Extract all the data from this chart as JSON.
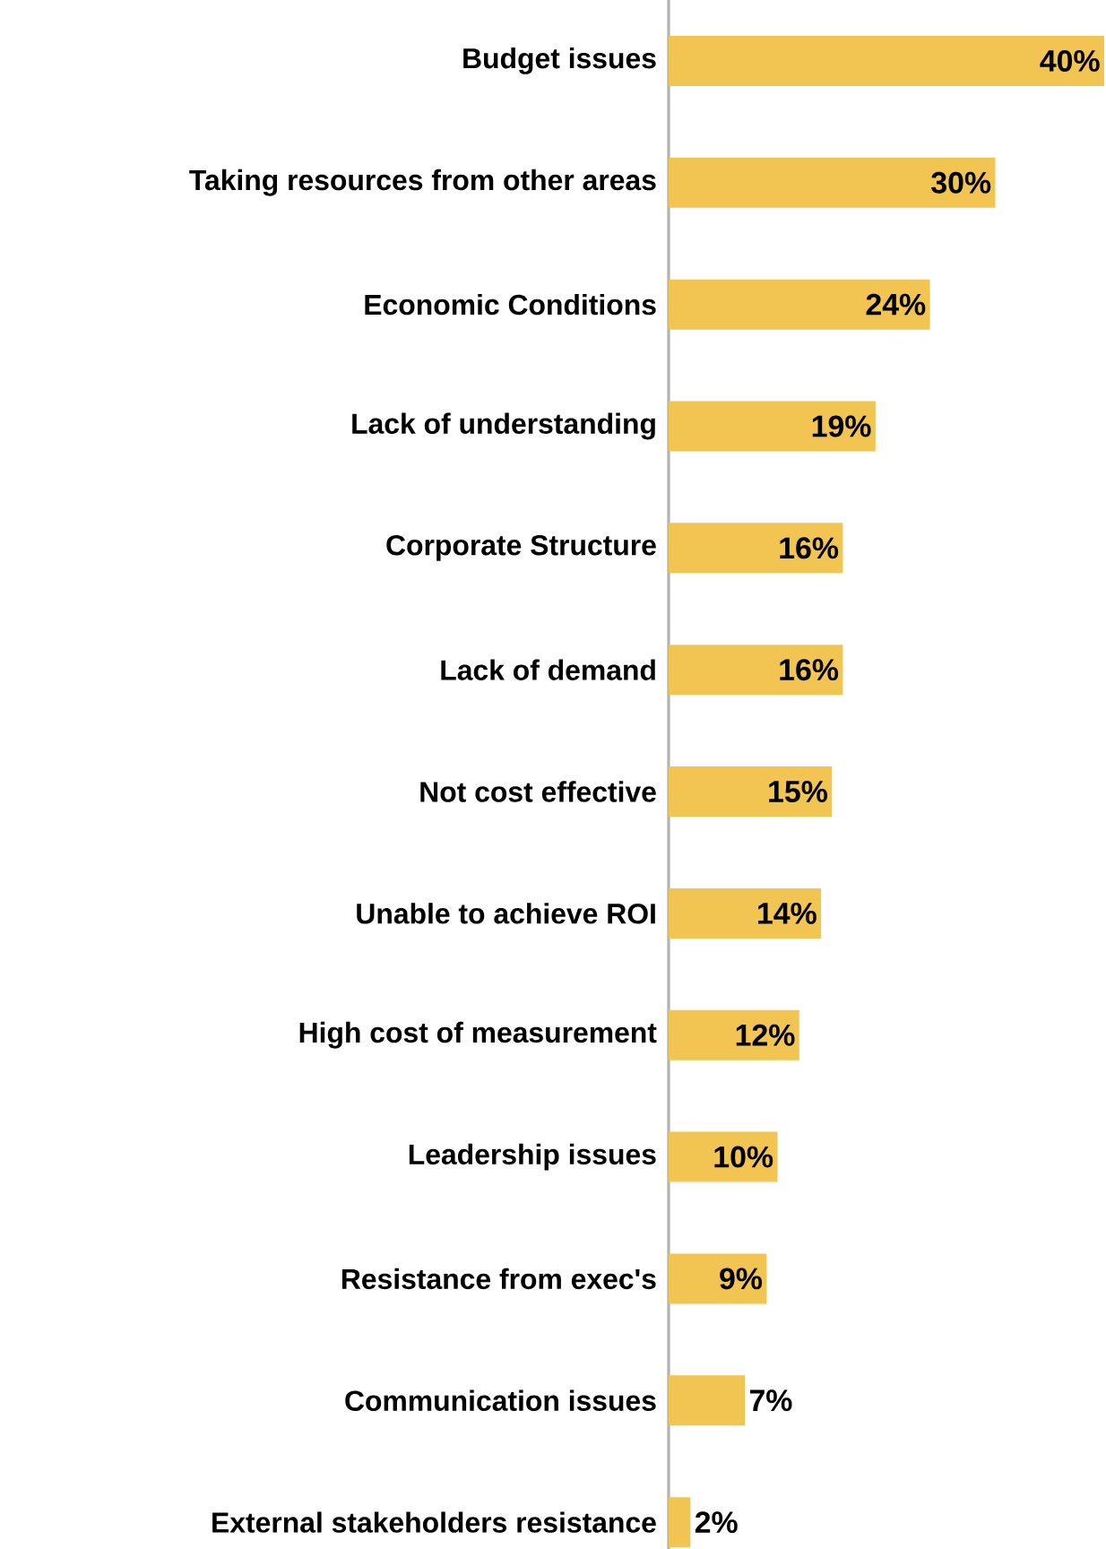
{
  "chart_data": {
    "type": "bar",
    "orientation": "horizontal",
    "categories": [
      "Budget issues",
      "Taking resources from other areas",
      "Economic Conditions",
      "Lack of understanding",
      "Corporate Structure",
      "Lack of demand",
      "Not cost effective",
      "Unable to achieve ROI",
      "High cost of measurement",
      "Leadership issues",
      "Resistance from exec's",
      "Communication issues",
      "External stakeholders resistance"
    ],
    "values": [
      40,
      30,
      24,
      19,
      16,
      16,
      15,
      14,
      12,
      10,
      9,
      7,
      2
    ],
    "value_labels": [
      "40%",
      "30%",
      "24%",
      "19%",
      "16%",
      "16%",
      "15%",
      "14%",
      "12%",
      "10%",
      "9%",
      "7%",
      "2%"
    ],
    "color": "#f2c552",
    "tick_labels": "y"
  }
}
